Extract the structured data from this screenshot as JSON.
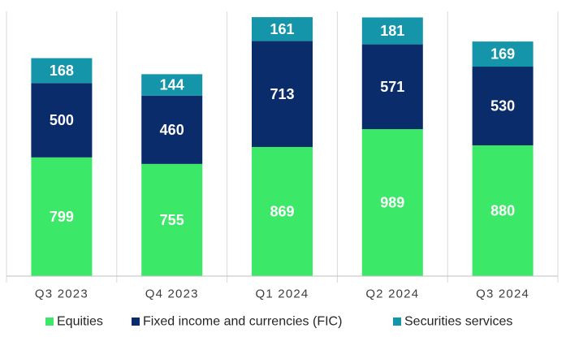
{
  "chart_data": {
    "type": "bar",
    "stacked": true,
    "categories": [
      "Q3 2023",
      "Q4 2023",
      "Q1 2024",
      "Q2 2024",
      "Q3 2024"
    ],
    "series": [
      {
        "name": "Equities",
        "color": "#3ce867",
        "values": [
          799,
          755,
          869,
          989,
          880
        ]
      },
      {
        "name": "Fixed income and currencies (FIC)",
        "color": "#0b2c6a",
        "values": [
          500,
          460,
          713,
          571,
          530
        ]
      },
      {
        "name": "Securities services",
        "color": "#1595a9",
        "values": [
          168,
          144,
          161,
          181,
          169
        ]
      }
    ],
    "title": "",
    "xlabel": "",
    "ylabel": "",
    "ylim": [
      0,
      1760
    ],
    "grid": false,
    "legend": "bottom",
    "data_labels": true,
    "category_separators": true
  }
}
